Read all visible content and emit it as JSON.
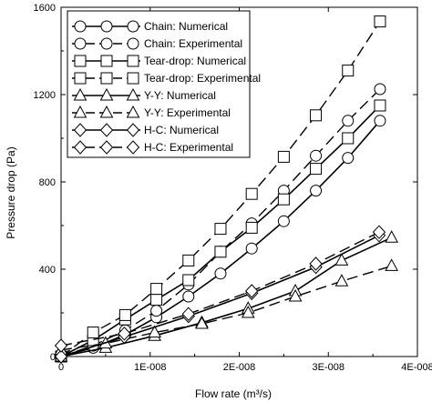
{
  "chart_data": {
    "type": "line",
    "xlabel": "Flow rate (m³/s)",
    "ylabel": "Pressure drop (Pa)",
    "xlim": [
      0,
      4e-08
    ],
    "ylim": [
      0,
      1600
    ],
    "xticks": [
      0,
      1e-08,
      2e-08,
      3e-08,
      4e-08
    ],
    "xtick_labels": [
      "0",
      "1E-008",
      "2E-008",
      "3E-008",
      "4E-008"
    ],
    "yticks": [
      0,
      400,
      800,
      1200,
      1600
    ],
    "ytick_labels": [
      "0",
      "400",
      "800",
      "1200",
      "1600"
    ],
    "legend_position": "top-left",
    "series": [
      {
        "name": "Chain: Numerical",
        "marker": "circle",
        "line": "solid",
        "x": [
          0,
          3.6e-09,
          7.2e-09,
          1.07e-08,
          1.43e-08,
          1.79e-08,
          2.14e-08,
          2.5e-08,
          2.86e-08,
          3.22e-08,
          3.58e-08
        ],
        "y": [
          0,
          40,
          100,
          180,
          275,
          380,
          495,
          620,
          760,
          910,
          1080
        ]
      },
      {
        "name": "Chain: Experimental",
        "marker": "circle",
        "line": "dashed",
        "x": [
          0,
          3.6e-09,
          7.2e-09,
          1.07e-08,
          1.43e-08,
          1.79e-08,
          2.14e-08,
          2.5e-08,
          2.86e-08,
          3.22e-08,
          3.58e-08
        ],
        "y": [
          0,
          50,
          120,
          210,
          330,
          480,
          610,
          760,
          920,
          1080,
          1225
        ]
      },
      {
        "name": "Tear-drop: Numerical",
        "marker": "square",
        "line": "solid",
        "x": [
          0,
          3.6e-09,
          7.2e-09,
          1.07e-08,
          1.43e-08,
          1.79e-08,
          2.14e-08,
          2.5e-08,
          2.86e-08,
          3.22e-08,
          3.58e-08
        ],
        "y": [
          0,
          75,
          170,
          260,
          350,
          480,
          590,
          720,
          860,
          1000,
          1150
        ]
      },
      {
        "name": "Tear-drop: Experimental",
        "marker": "square",
        "line": "dashed",
        "x": [
          0,
          3.6e-09,
          7.2e-09,
          1.07e-08,
          1.43e-08,
          1.79e-08,
          2.14e-08,
          2.5e-08,
          2.86e-08,
          3.22e-08,
          3.58e-08
        ],
        "y": [
          0,
          110,
          190,
          310,
          440,
          585,
          745,
          915,
          1105,
          1310,
          1535
        ]
      },
      {
        "name": "Y-Y: Numerical",
        "marker": "triangle",
        "line": "solid",
        "x": [
          0,
          5e-09,
          1.05e-08,
          1.58e-08,
          2.1e-08,
          2.63e-08,
          3.15e-08,
          3.71e-08
        ],
        "y": [
          0,
          40,
          95,
          155,
          220,
          300,
          440,
          545
        ]
      },
      {
        "name": "Y-Y: Experimental",
        "marker": "triangle",
        "line": "dashed",
        "x": [
          0,
          5e-09,
          1.05e-08,
          1.58e-08,
          2.1e-08,
          2.63e-08,
          3.15e-08,
          3.71e-08
        ],
        "y": [
          30,
          60,
          110,
          150,
          200,
          275,
          345,
          415
        ]
      },
      {
        "name": "H-C: Numerical",
        "marker": "diamond",
        "line": "solid",
        "x": [
          0,
          7.1e-09,
          1.43e-08,
          2.14e-08,
          2.86e-08,
          3.57e-08
        ],
        "y": [
          0,
          90,
          185,
          290,
          410,
          555
        ]
      },
      {
        "name": "H-C: Experimental",
        "marker": "diamond",
        "line": "dashed",
        "x": [
          0,
          7.1e-09,
          1.43e-08,
          2.14e-08,
          2.86e-08,
          3.57e-08
        ],
        "y": [
          50,
          105,
          195,
          300,
          425,
          570
        ]
      }
    ]
  }
}
